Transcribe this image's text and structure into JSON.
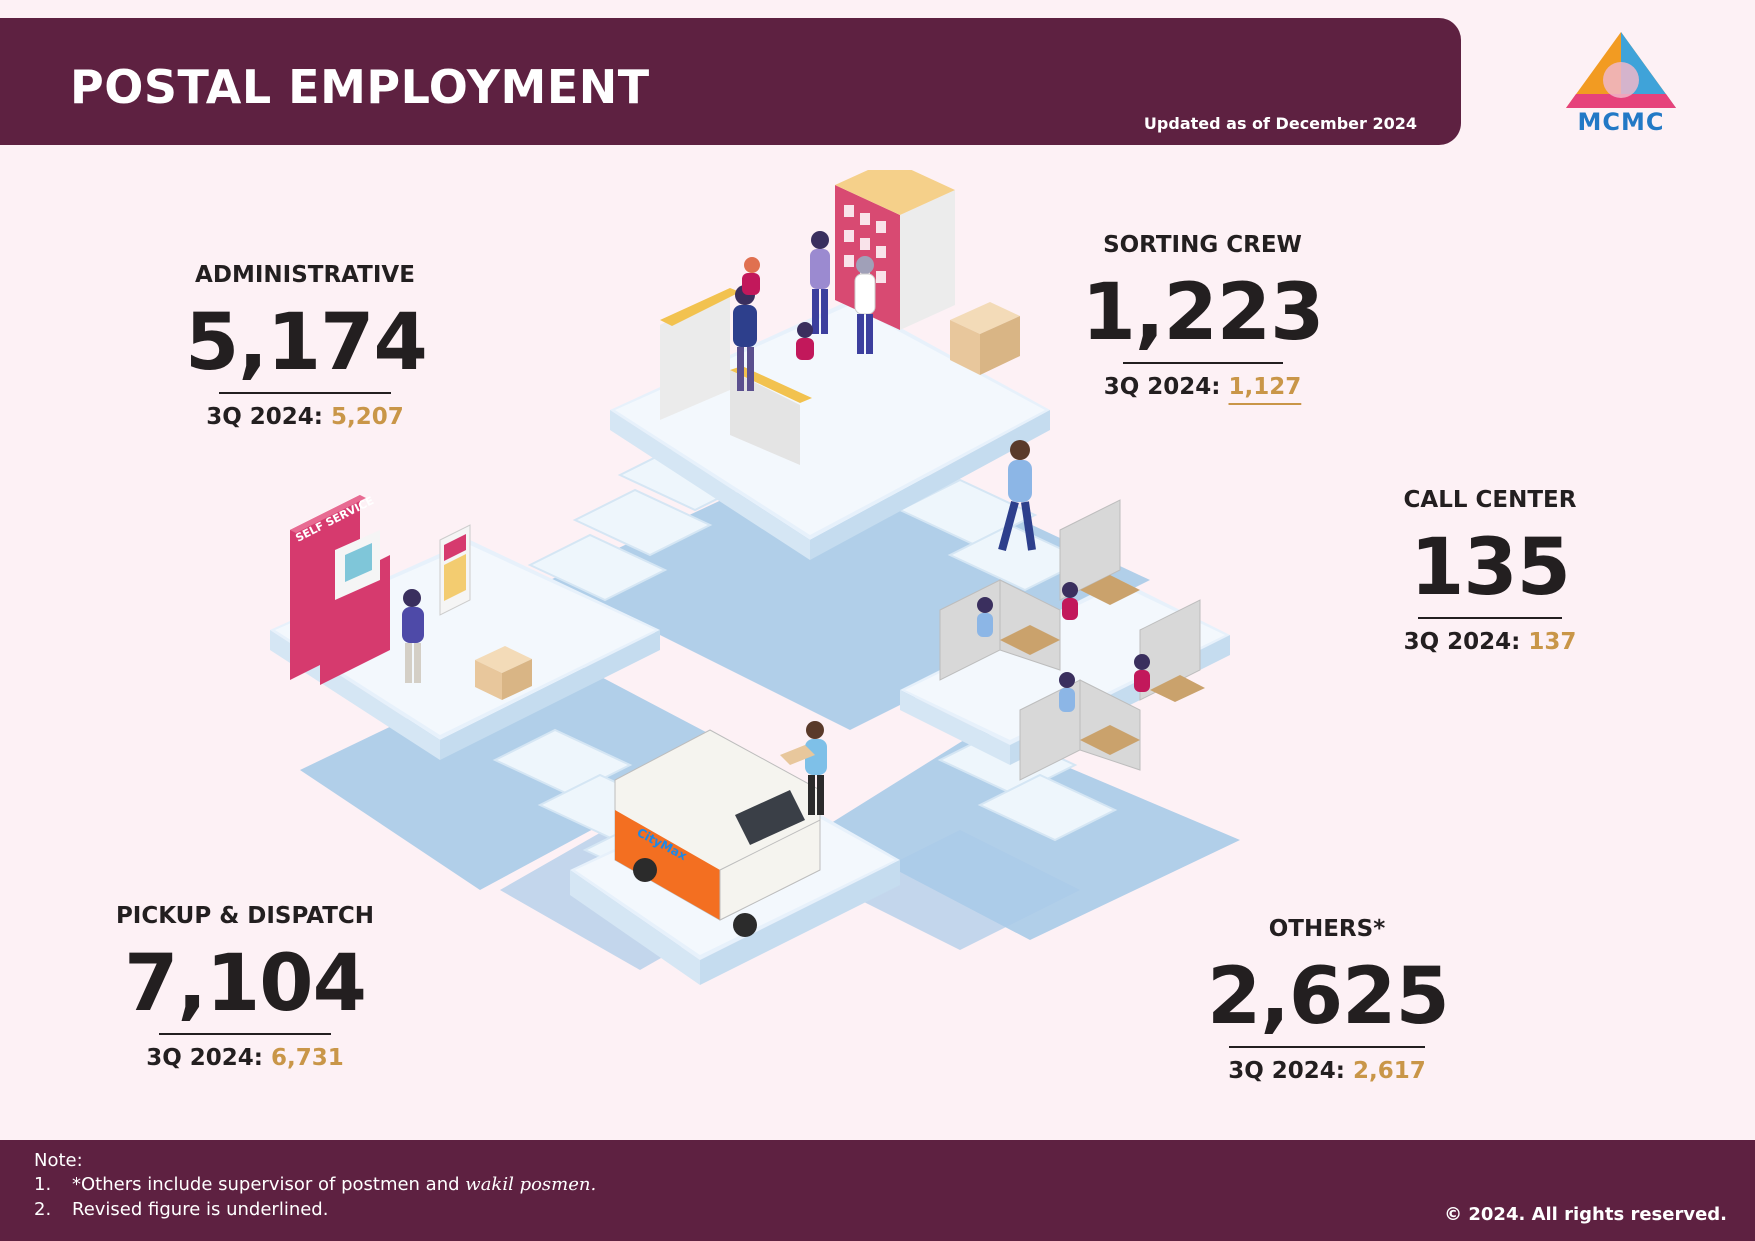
{
  "header": {
    "title": "POSTAL EMPLOYMENT",
    "updated": "Updated as of December 2024"
  },
  "logo": {
    "text": "MCMC"
  },
  "stats": {
    "administrative": {
      "label": "ADMINISTRATIVE",
      "value": "5,174",
      "prev_label": "3Q 2024:",
      "prev_value": "5,207",
      "revised": false
    },
    "sorting_crew": {
      "label": "SORTING CREW",
      "value": "1,223",
      "prev_label": "3Q 2024:",
      "prev_value": "1,127",
      "revised": true
    },
    "call_center": {
      "label": "CALL CENTER",
      "value": "135",
      "prev_label": "3Q 2024:",
      "prev_value": "137",
      "revised": false
    },
    "pickup_dispatch": {
      "label": "PICKUP & DISPATCH",
      "value": "7,104",
      "prev_label": "3Q 2024:",
      "prev_value": "6,731",
      "revised": false
    },
    "others": {
      "label": "OTHERS*",
      "value": "2,625",
      "prev_label": "3Q 2024:",
      "prev_value": "2,617",
      "revised": false
    }
  },
  "scene": {
    "kiosk_sign": "SELF SERVICE",
    "van_brand": "CityMax"
  },
  "footer": {
    "note_heading": "Note:",
    "notes": [
      {
        "num": "1.",
        "text": "*Others include supervisor of postmen and ",
        "italic": "wakil posmen."
      },
      {
        "num": "2.",
        "text": "Revised figure is underlined."
      }
    ],
    "copyright": "© 2024. All rights reserved."
  },
  "colors": {
    "maroon": "#5e2141",
    "gold": "#c99648",
    "background": "#fdf1f5",
    "platform_blue": "#a9cbe8",
    "logo_blue": "#2279c6"
  }
}
